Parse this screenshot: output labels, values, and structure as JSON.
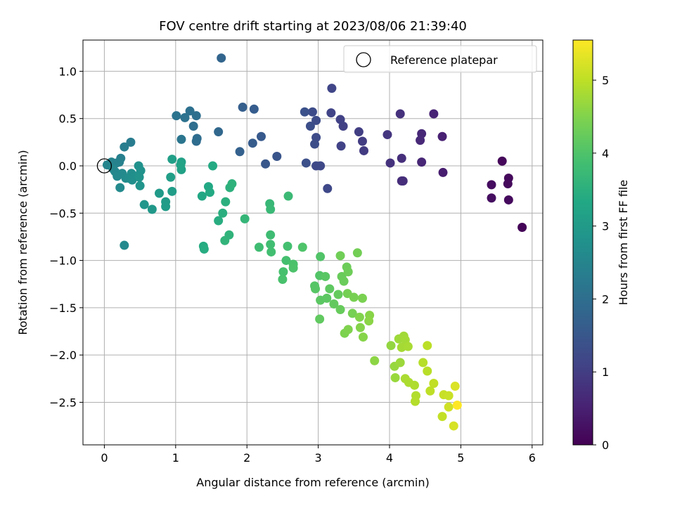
{
  "chart_data": {
    "type": "scatter",
    "title": "FOV centre drift starting at 2023/08/06 21:39:40",
    "xlabel": "Angular distance from reference (arcmin)",
    "ylabel": "Rotation from reference (arcmin)",
    "xlim": [
      -0.3,
      6.15
    ],
    "ylim": [
      -2.95,
      1.33
    ],
    "xticks": [
      0,
      1,
      2,
      3,
      4,
      5,
      6
    ],
    "xtick_labels": [
      "0",
      "1",
      "2",
      "3",
      "4",
      "5",
      "6"
    ],
    "yticks": [
      1.0,
      0.5,
      0.0,
      -0.5,
      -1.0,
      -1.5,
      -2.0,
      -2.5
    ],
    "ytick_labels": [
      "1.0",
      "0.5",
      "0.0",
      "−0.5",
      "−1.0",
      "−1.5",
      "−2.0",
      "−2.5"
    ],
    "grid": true,
    "legend": {
      "position": "top-right",
      "entries": [
        "Reference platepar"
      ]
    },
    "colorbar": {
      "label": "Hours from first FF file",
      "range": [
        0,
        5.55
      ],
      "ticks": [
        0,
        1,
        2,
        3,
        4,
        5
      ],
      "tick_labels": [
        "0",
        "1",
        "2",
        "3",
        "4",
        "5"
      ],
      "colormap": "viridis"
    },
    "reference_point": {
      "x": 0.0,
      "y": 0.0
    },
    "series": [
      {
        "name": "",
        "points": [
          {
            "x": 5.86,
            "y": -0.65,
            "h": 0.05
          },
          {
            "x": 5.58,
            "y": 0.05,
            "h": 0.1
          },
          {
            "x": 5.67,
            "y": -0.13,
            "h": 0.12
          },
          {
            "x": 5.66,
            "y": -0.19,
            "h": 0.14
          },
          {
            "x": 5.67,
            "y": -0.36,
            "h": 0.15
          },
          {
            "x": 5.43,
            "y": -0.2,
            "h": 0.18
          },
          {
            "x": 5.43,
            "y": -0.34,
            "h": 0.2
          },
          {
            "x": 4.75,
            "y": -0.07,
            "h": 0.45
          },
          {
            "x": 4.74,
            "y": 0.31,
            "h": 0.5
          },
          {
            "x": 4.62,
            "y": 0.55,
            "h": 0.55
          },
          {
            "x": 4.45,
            "y": 0.04,
            "h": 0.6
          },
          {
            "x": 4.45,
            "y": 0.34,
            "h": 0.62
          },
          {
            "x": 4.43,
            "y": 0.27,
            "h": 0.65
          },
          {
            "x": 4.17,
            "y": -0.16,
            "h": 0.7
          },
          {
            "x": 4.19,
            "y": -0.16,
            "h": 0.72
          },
          {
            "x": 4.17,
            "y": 0.08,
            "h": 0.75
          },
          {
            "x": 4.15,
            "y": 0.55,
            "h": 0.78
          },
          {
            "x": 4.01,
            "y": 0.03,
            "h": 0.8
          },
          {
            "x": 3.97,
            "y": 0.33,
            "h": 0.85
          },
          {
            "x": 3.64,
            "y": 0.16,
            "h": 0.95
          },
          {
            "x": 3.62,
            "y": 0.26,
            "h": 0.98
          },
          {
            "x": 3.57,
            "y": 0.36,
            "h": 1.0
          },
          {
            "x": 3.35,
            "y": 0.42,
            "h": 1.05
          },
          {
            "x": 3.31,
            "y": 0.49,
            "h": 1.08
          },
          {
            "x": 3.32,
            "y": 0.21,
            "h": 1.1
          },
          {
            "x": 3.18,
            "y": 0.56,
            "h": 1.12
          },
          {
            "x": 3.19,
            "y": 0.82,
            "h": 1.15
          },
          {
            "x": 3.13,
            "y": -0.24,
            "h": 1.2
          },
          {
            "x": 3.03,
            "y": 0.0,
            "h": 1.22
          },
          {
            "x": 2.97,
            "y": 0.0,
            "h": 1.24
          },
          {
            "x": 2.97,
            "y": 0.3,
            "h": 1.25
          },
          {
            "x": 2.97,
            "y": 0.48,
            "h": 1.27
          },
          {
            "x": 2.92,
            "y": 0.57,
            "h": 1.28
          },
          {
            "x": 2.95,
            "y": 0.23,
            "h": 1.3
          },
          {
            "x": 2.89,
            "y": 0.42,
            "h": 1.32
          },
          {
            "x": 2.83,
            "y": 0.03,
            "h": 1.35
          },
          {
            "x": 2.81,
            "y": 0.57,
            "h": 1.37
          },
          {
            "x": 2.42,
            "y": 0.1,
            "h": 1.45
          },
          {
            "x": 2.26,
            "y": 0.02,
            "h": 1.5
          },
          {
            "x": 2.2,
            "y": 0.31,
            "h": 1.55
          },
          {
            "x": 2.08,
            "y": 0.24,
            "h": 1.6
          },
          {
            "x": 2.1,
            "y": 0.6,
            "h": 1.63
          },
          {
            "x": 1.94,
            "y": 0.62,
            "h": 1.67
          },
          {
            "x": 1.9,
            "y": 0.15,
            "h": 1.7
          },
          {
            "x": 1.64,
            "y": 1.14,
            "h": 1.8
          },
          {
            "x": 1.6,
            "y": 0.36,
            "h": 1.85
          },
          {
            "x": 1.29,
            "y": 0.26,
            "h": 1.95
          },
          {
            "x": 1.3,
            "y": 0.29,
            "h": 1.97
          },
          {
            "x": 1.25,
            "y": 0.42,
            "h": 2.0
          },
          {
            "x": 1.29,
            "y": 0.53,
            "h": 2.02
          },
          {
            "x": 1.2,
            "y": 0.58,
            "h": 2.05
          },
          {
            "x": 1.13,
            "y": 0.51,
            "h": 2.08
          },
          {
            "x": 1.01,
            "y": 0.53,
            "h": 2.1
          },
          {
            "x": 1.08,
            "y": 0.28,
            "h": 2.15
          },
          {
            "x": 0.37,
            "y": 0.25,
            "h": 2.3
          },
          {
            "x": 0.28,
            "y": 0.2,
            "h": 2.35
          },
          {
            "x": 0.23,
            "y": 0.08,
            "h": 2.38
          },
          {
            "x": 0.21,
            "y": 0.04,
            "h": 2.42
          },
          {
            "x": 0.17,
            "y": 0.03,
            "h": 2.45
          },
          {
            "x": 0.1,
            "y": 0.04,
            "h": 2.47
          },
          {
            "x": 0.04,
            "y": 0.01,
            "h": 2.5
          },
          {
            "x": 0.15,
            "y": -0.06,
            "h": 2.52
          },
          {
            "x": 0.12,
            "y": -0.03,
            "h": 2.55
          },
          {
            "x": 0.18,
            "y": -0.11,
            "h": 2.57
          },
          {
            "x": 0.25,
            "y": -0.08,
            "h": 2.6
          },
          {
            "x": 0.22,
            "y": -0.23,
            "h": 2.62
          },
          {
            "x": 0.3,
            "y": -0.13,
            "h": 2.65
          },
          {
            "x": 0.34,
            "y": -0.13,
            "h": 2.67
          },
          {
            "x": 0.38,
            "y": -0.08,
            "h": 2.7
          },
          {
            "x": 0.39,
            "y": -0.15,
            "h": 2.72
          },
          {
            "x": 0.44,
            "y": -0.11,
            "h": 2.75
          },
          {
            "x": 0.48,
            "y": 0.0,
            "h": 2.77
          },
          {
            "x": 0.51,
            "y": -0.05,
            "h": 2.8
          },
          {
            "x": 0.49,
            "y": -0.12,
            "h": 2.82
          },
          {
            "x": 0.5,
            "y": -0.21,
            "h": 2.85
          },
          {
            "x": 0.28,
            "y": -0.84,
            "h": 2.6
          },
          {
            "x": 0.56,
            "y": -0.41,
            "h": 2.9
          },
          {
            "x": 0.67,
            "y": -0.46,
            "h": 2.95
          },
          {
            "x": 0.77,
            "y": -0.29,
            "h": 3.0
          },
          {
            "x": 0.86,
            "y": -0.38,
            "h": 3.02
          },
          {
            "x": 0.86,
            "y": -0.43,
            "h": 3.05
          },
          {
            "x": 0.95,
            "y": -0.27,
            "h": 3.07
          },
          {
            "x": 0.93,
            "y": -0.12,
            "h": 3.1
          },
          {
            "x": 0.95,
            "y": 0.07,
            "h": 3.12
          },
          {
            "x": 1.08,
            "y": 0.04,
            "h": 3.15
          },
          {
            "x": 1.08,
            "y": -0.04,
            "h": 3.17
          },
          {
            "x": 1.07,
            "y": 0.01,
            "h": 3.2
          },
          {
            "x": 1.37,
            "y": -0.32,
            "h": 3.3
          },
          {
            "x": 1.46,
            "y": -0.22,
            "h": 3.32
          },
          {
            "x": 1.48,
            "y": -0.28,
            "h": 3.35
          },
          {
            "x": 1.52,
            "y": 0.0,
            "h": 3.37
          },
          {
            "x": 1.39,
            "y": -0.85,
            "h": 3.4
          },
          {
            "x": 1.4,
            "y": -0.88,
            "h": 3.42
          },
          {
            "x": 1.6,
            "y": -0.58,
            "h": 3.45
          },
          {
            "x": 1.66,
            "y": -0.5,
            "h": 3.47
          },
          {
            "x": 1.7,
            "y": -0.38,
            "h": 3.5
          },
          {
            "x": 1.76,
            "y": -0.23,
            "h": 3.52
          },
          {
            "x": 1.79,
            "y": -0.19,
            "h": 3.55
          },
          {
            "x": 1.75,
            "y": -0.73,
            "h": 3.57
          },
          {
            "x": 1.69,
            "y": -0.79,
            "h": 3.6
          },
          {
            "x": 1.97,
            "y": -0.56,
            "h": 3.65
          },
          {
            "x": 2.32,
            "y": -0.4,
            "h": 3.7
          },
          {
            "x": 2.33,
            "y": -0.46,
            "h": 3.72
          },
          {
            "x": 2.58,
            "y": -0.32,
            "h": 3.75
          },
          {
            "x": 2.33,
            "y": -0.73,
            "h": 3.8
          },
          {
            "x": 2.17,
            "y": -0.86,
            "h": 3.82
          },
          {
            "x": 2.33,
            "y": -0.83,
            "h": 3.84
          },
          {
            "x": 2.34,
            "y": -0.91,
            "h": 3.86
          },
          {
            "x": 2.57,
            "y": -0.85,
            "h": 3.88
          },
          {
            "x": 2.55,
            "y": -1.0,
            "h": 3.9
          },
          {
            "x": 2.51,
            "y": -1.12,
            "h": 3.92
          },
          {
            "x": 2.5,
            "y": -1.2,
            "h": 3.94
          },
          {
            "x": 2.65,
            "y": -1.04,
            "h": 3.96
          },
          {
            "x": 2.65,
            "y": -1.08,
            "h": 3.98
          },
          {
            "x": 2.78,
            "y": -0.86,
            "h": 4.0
          },
          {
            "x": 3.03,
            "y": -0.96,
            "h": 4.02
          },
          {
            "x": 3.02,
            "y": -1.16,
            "h": 4.04
          },
          {
            "x": 2.95,
            "y": -1.27,
            "h": 4.06
          },
          {
            "x": 2.96,
            "y": -1.3,
            "h": 4.08
          },
          {
            "x": 3.1,
            "y": -1.17,
            "h": 4.1
          },
          {
            "x": 3.03,
            "y": -1.42,
            "h": 4.12
          },
          {
            "x": 3.12,
            "y": -1.4,
            "h": 4.14
          },
          {
            "x": 3.16,
            "y": -1.3,
            "h": 4.16
          },
          {
            "x": 3.02,
            "y": -1.62,
            "h": 4.18
          },
          {
            "x": 3.22,
            "y": -1.46,
            "h": 4.2
          },
          {
            "x": 3.28,
            "y": -1.36,
            "h": 4.22
          },
          {
            "x": 3.31,
            "y": -1.52,
            "h": 4.24
          },
          {
            "x": 3.33,
            "y": -1.17,
            "h": 4.26
          },
          {
            "x": 3.36,
            "y": -1.22,
            "h": 4.28
          },
          {
            "x": 3.4,
            "y": -1.07,
            "h": 4.3
          },
          {
            "x": 3.42,
            "y": -1.12,
            "h": 4.32
          },
          {
            "x": 3.31,
            "y": -0.95,
            "h": 4.34
          },
          {
            "x": 3.55,
            "y": -0.92,
            "h": 4.36
          },
          {
            "x": 3.41,
            "y": -1.35,
            "h": 4.38
          },
          {
            "x": 3.48,
            "y": -1.56,
            "h": 4.4
          },
          {
            "x": 3.5,
            "y": -1.39,
            "h": 4.42
          },
          {
            "x": 3.62,
            "y": -1.4,
            "h": 4.44
          },
          {
            "x": 3.37,
            "y": -1.77,
            "h": 4.46
          },
          {
            "x": 3.42,
            "y": -1.73,
            "h": 4.48
          },
          {
            "x": 3.58,
            "y": -1.6,
            "h": 4.5
          },
          {
            "x": 3.59,
            "y": -1.71,
            "h": 4.52
          },
          {
            "x": 3.63,
            "y": -1.81,
            "h": 4.54
          },
          {
            "x": 3.72,
            "y": -1.58,
            "h": 4.56
          },
          {
            "x": 3.71,
            "y": -1.64,
            "h": 4.58
          },
          {
            "x": 3.79,
            "y": -2.06,
            "h": 4.6
          },
          {
            "x": 4.02,
            "y": -1.9,
            "h": 4.65
          },
          {
            "x": 4.07,
            "y": -2.12,
            "h": 4.68
          },
          {
            "x": 4.08,
            "y": -2.24,
            "h": 4.7
          },
          {
            "x": 4.15,
            "y": -2.08,
            "h": 4.72
          },
          {
            "x": 4.13,
            "y": -1.83,
            "h": 4.74
          },
          {
            "x": 4.2,
            "y": -1.8,
            "h": 4.76
          },
          {
            "x": 4.22,
            "y": -1.84,
            "h": 4.78
          },
          {
            "x": 4.17,
            "y": -1.92,
            "h": 4.8
          },
          {
            "x": 4.26,
            "y": -1.91,
            "h": 4.82
          },
          {
            "x": 4.22,
            "y": -2.25,
            "h": 4.84
          },
          {
            "x": 4.27,
            "y": -2.29,
            "h": 4.86
          },
          {
            "x": 4.35,
            "y": -2.32,
            "h": 4.88
          },
          {
            "x": 4.37,
            "y": -2.43,
            "h": 4.9
          },
          {
            "x": 4.36,
            "y": -2.49,
            "h": 4.92
          },
          {
            "x": 4.47,
            "y": -2.08,
            "h": 4.94
          },
          {
            "x": 4.53,
            "y": -2.17,
            "h": 4.96
          },
          {
            "x": 4.53,
            "y": -1.9,
            "h": 4.98
          },
          {
            "x": 4.57,
            "y": -2.38,
            "h": 5.0
          },
          {
            "x": 4.62,
            "y": -2.3,
            "h": 5.02
          },
          {
            "x": 4.74,
            "y": -2.65,
            "h": 5.05
          },
          {
            "x": 4.76,
            "y": -2.42,
            "h": 5.08
          },
          {
            "x": 4.83,
            "y": -2.43,
            "h": 5.1
          },
          {
            "x": 4.83,
            "y": -2.55,
            "h": 5.15
          },
          {
            "x": 4.9,
            "y": -2.75,
            "h": 5.2
          },
          {
            "x": 4.92,
            "y": -2.33,
            "h": 5.25
          },
          {
            "x": 4.95,
            "y": -2.53,
            "h": 5.55
          }
        ]
      }
    ]
  }
}
